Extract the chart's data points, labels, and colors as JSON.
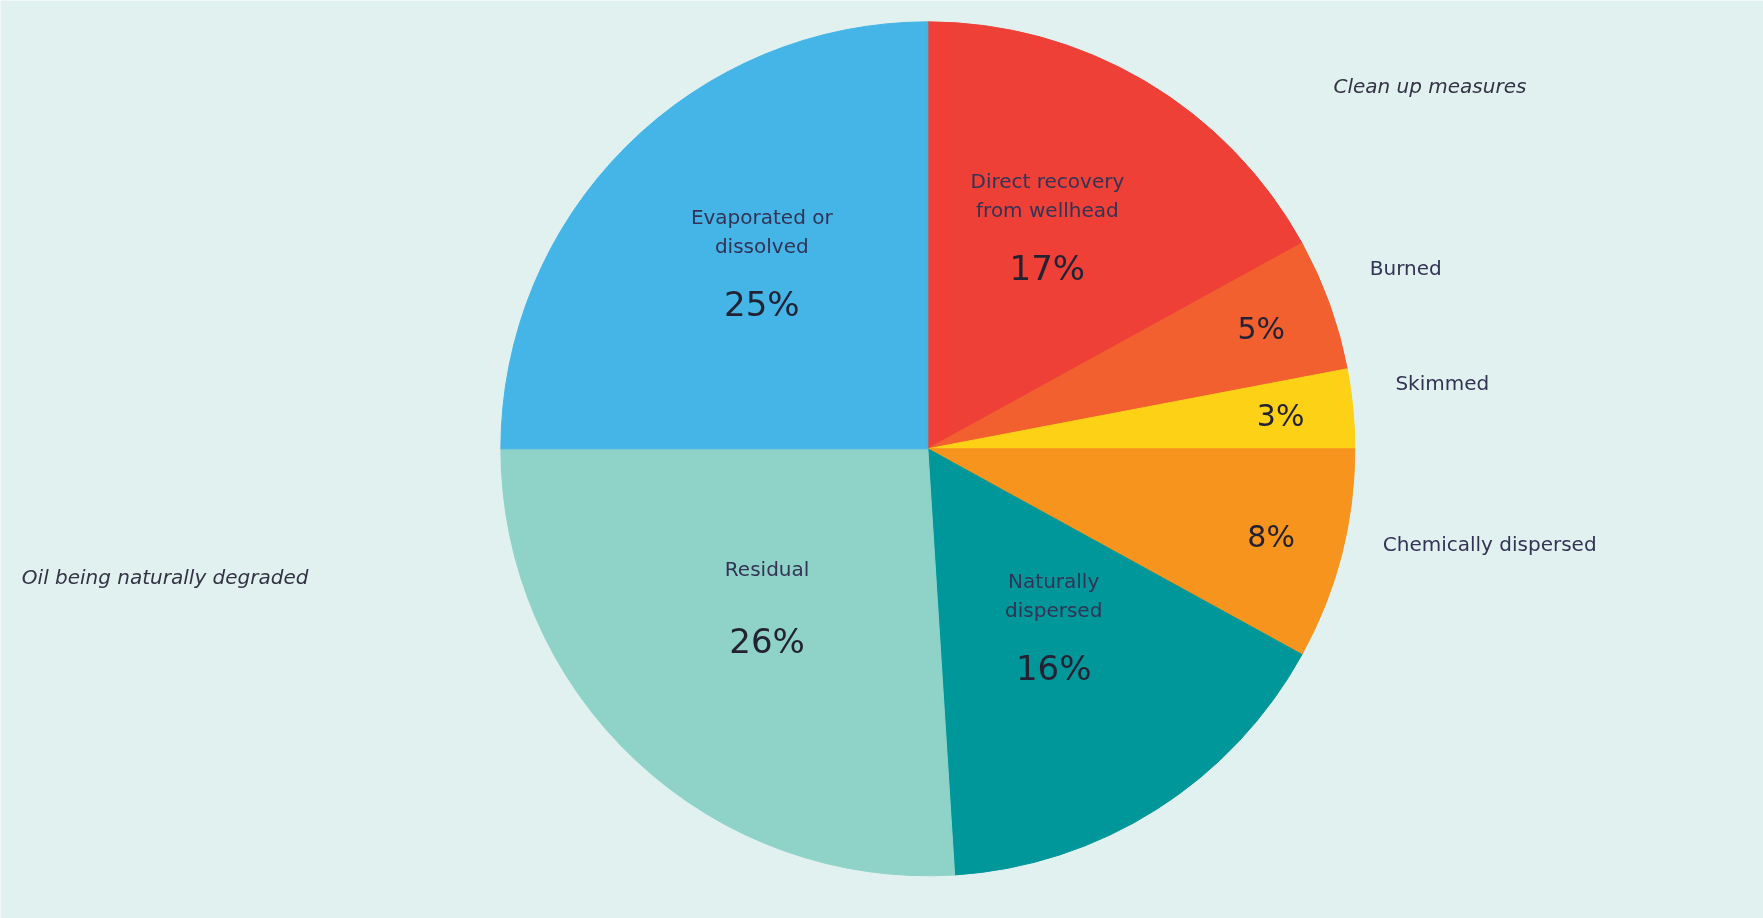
{
  "chart_data": {
    "type": "pie",
    "categories": [
      "Direct recovery from wellhead",
      "Burned",
      "Skimmed",
      "Chemically dispersed",
      "Naturally dispersed",
      "Residual",
      "Evaporated or dissolved"
    ],
    "values": [
      17,
      5,
      3,
      8,
      16,
      26,
      25
    ],
    "colors": [
      "#ee4036",
      "#f26030",
      "#fcd116",
      "#f7941d",
      "#00979a",
      "#8fd3c8",
      "#45b4e6"
    ],
    "value_labels": [
      "17%",
      "5%",
      "3%",
      "8%",
      "16%",
      "26%",
      "25%"
    ],
    "annotations": [
      "Clean up measures",
      "Oil being naturally degraded"
    ]
  }
}
